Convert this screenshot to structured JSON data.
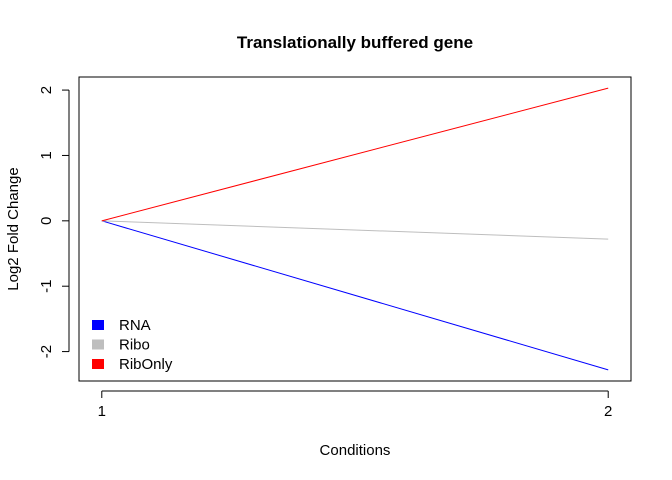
{
  "chart_data": {
    "type": "line",
    "title": "Translationally buffered gene",
    "xlabel": "Conditions",
    "ylabel": "Log2 Fold Change",
    "x": [
      1,
      2
    ],
    "xticks": [
      "1",
      "2"
    ],
    "yticks": [
      "-2",
      "-1",
      "0",
      "1",
      "2"
    ],
    "ylim": [
      -2.45,
      2.2
    ],
    "xlim": [
      0.955,
      2.045
    ],
    "grid": false,
    "legend_position": "bottom-left",
    "series": [
      {
        "name": "RNA",
        "values": [
          0,
          -2.28
        ],
        "color": "#0000ff"
      },
      {
        "name": "Ribo",
        "values": [
          0,
          -0.28
        ],
        "color": "#bebebe"
      },
      {
        "name": "RibOnly",
        "values": [
          0,
          2.03
        ],
        "color": "#ff0000"
      }
    ]
  }
}
